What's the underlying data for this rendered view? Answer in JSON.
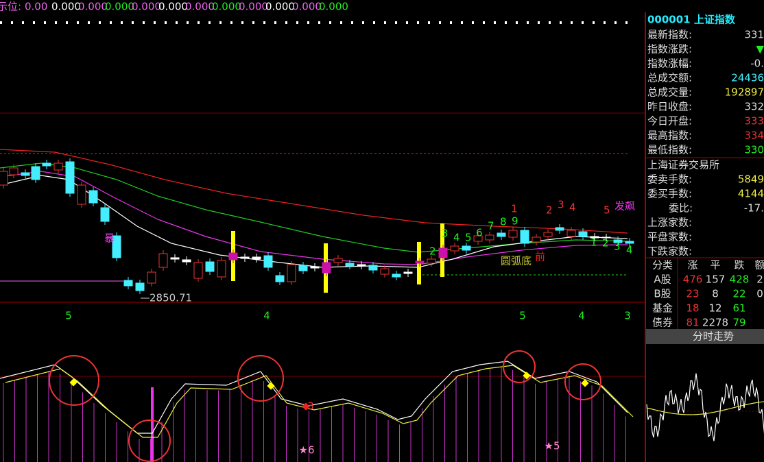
{
  "indicator_bar": {
    "label": "示位:",
    "values": [
      "0.00",
      "0.000",
      "0.000",
      "0.000",
      "0.000",
      "0.000",
      "0.000",
      "0.000",
      "0.000",
      "0.000",
      "0.000",
      "0.000"
    ]
  },
  "chart_annotations": {
    "low_price": "2850.71",
    "labels": [
      "暴",
      "圆弧底",
      "前",
      "发飙"
    ],
    "wave_red": [
      "1",
      "2",
      "3",
      "4",
      "5"
    ],
    "wave_green": [
      "2",
      "3",
      "4",
      "5",
      "6",
      "7",
      "8",
      "9"
    ],
    "wave_tail": [
      "1",
      "2",
      "3",
      "4"
    ],
    "axis_marks": [
      "5",
      "4",
      "5",
      "4",
      "3"
    ],
    "signals": [
      "3",
      "★6",
      "★5"
    ]
  },
  "quote_panel": {
    "title": "000001 上证指数",
    "rows": [
      {
        "label": "最新指数:",
        "value": "331"
      },
      {
        "label": "指数涨跌:",
        "value": "▼"
      },
      {
        "label": "指数涨幅:",
        "value": "-0."
      },
      {
        "label": "总成交额:",
        "value": "24436"
      },
      {
        "label": "总成交量:",
        "value": "192897"
      },
      {
        "label": "昨日收盘:",
        "value": "332"
      },
      {
        "label": "今日开盘:",
        "value": "333"
      },
      {
        "label": "最高指数:",
        "value": "334"
      },
      {
        "label": "最低指数:",
        "value": "330"
      }
    ],
    "exchange": "上海证券交易所",
    "rows2": [
      {
        "label": "委卖手数:",
        "value": "5849"
      },
      {
        "label": "委买手数:",
        "value": "4144"
      },
      {
        "label": "委比:",
        "value": "-17."
      },
      {
        "label": "上涨家数:"
      },
      {
        "label": "平盘家数:"
      },
      {
        "label": "下跌家数:"
      }
    ]
  },
  "breadth_table": {
    "header": [
      "分类",
      "涨",
      "平",
      "跌",
      "额"
    ],
    "rows": [
      [
        "A股",
        "476",
        "157",
        "428",
        "2"
      ],
      [
        "B股",
        "23",
        "8",
        "22",
        "0"
      ],
      [
        "基金",
        "18",
        "12",
        "61",
        ""
      ],
      [
        "债券",
        "81",
        "2278",
        "79",
        ""
      ]
    ]
  },
  "tab": "分时走势"
}
